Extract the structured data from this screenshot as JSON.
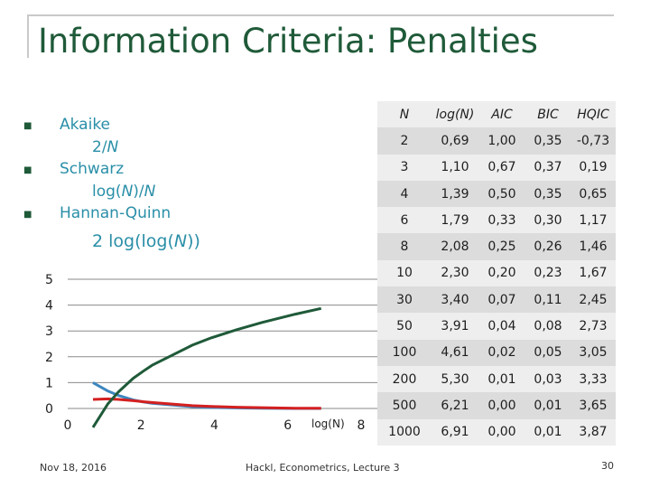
{
  "title": "Information Criteria: Penalties",
  "bullets": [
    {
      "label": "Akaike",
      "formula_parts": [
        "2/",
        "N"
      ]
    },
    {
      "label": "Schwarz",
      "formula_parts": [
        "log(",
        "N",
        ")/",
        "N"
      ]
    },
    {
      "label": "Hannan-Quinn",
      "formula_parts": [
        "2 log(log(",
        "N",
        "))"
      ]
    }
  ],
  "table": {
    "headers": [
      "N",
      "log(N)",
      "AIC",
      "BIC",
      "HQIC"
    ],
    "rows": [
      [
        "2",
        "0,69",
        "1,00",
        "0,35",
        "-0,73"
      ],
      [
        "3",
        "1,10",
        "0,67",
        "0,37",
        "0,19"
      ],
      [
        "4",
        "1,39",
        "0,50",
        "0,35",
        "0,65"
      ],
      [
        "6",
        "1,79",
        "0,33",
        "0,30",
        "1,17"
      ],
      [
        "8",
        "2,08",
        "0,25",
        "0,26",
        "1,46"
      ],
      [
        "10",
        "2,30",
        "0,20",
        "0,23",
        "1,67"
      ],
      [
        "30",
        "3,40",
        "0,07",
        "0,11",
        "2,45"
      ],
      [
        "50",
        "3,91",
        "0,04",
        "0,08",
        "2,73"
      ],
      [
        "100",
        "4,61",
        "0,02",
        "0,05",
        "3,05"
      ],
      [
        "200",
        "5,30",
        "0,01",
        "0,03",
        "3,33"
      ],
      [
        "500",
        "6,21",
        "0,00",
        "0,01",
        "3,65"
      ],
      [
        "1000",
        "6,91",
        "0,00",
        "0,01",
        "3,87"
      ]
    ]
  },
  "chart_data": {
    "type": "line",
    "xlabel": "log(N)",
    "ylabel": "",
    "xlim": [
      0,
      8
    ],
    "ylim": [
      0,
      5
    ],
    "x_ticks": [
      "0",
      "2",
      "4",
      "6",
      "8"
    ],
    "y_ticks": [
      "0",
      "1",
      "2",
      "3",
      "4",
      "5"
    ],
    "grid": "horizontal",
    "x": [
      0.69,
      1.1,
      1.39,
      1.79,
      2.08,
      2.3,
      3.4,
      3.91,
      4.61,
      5.3,
      6.21,
      6.91
    ],
    "series": [
      {
        "color": "#3c86bf",
        "values": [
          1.0,
          0.67,
          0.5,
          0.33,
          0.25,
          0.2,
          0.07,
          0.04,
          0.02,
          0.01,
          0.0,
          0.0
        ]
      },
      {
        "color": "#d42020",
        "values": [
          0.35,
          0.37,
          0.35,
          0.3,
          0.26,
          0.23,
          0.11,
          0.08,
          0.05,
          0.03,
          0.01,
          0.01
        ]
      },
      {
        "color": "#1f5a39",
        "values": [
          -0.73,
          0.19,
          0.65,
          1.17,
          1.46,
          1.67,
          2.45,
          2.73,
          3.05,
          3.33,
          3.65,
          3.87
        ]
      }
    ]
  },
  "footer": {
    "date": "Nov 18, 2016",
    "course": "Hackl,  Econometrics, Lecture 3",
    "page": "30"
  }
}
